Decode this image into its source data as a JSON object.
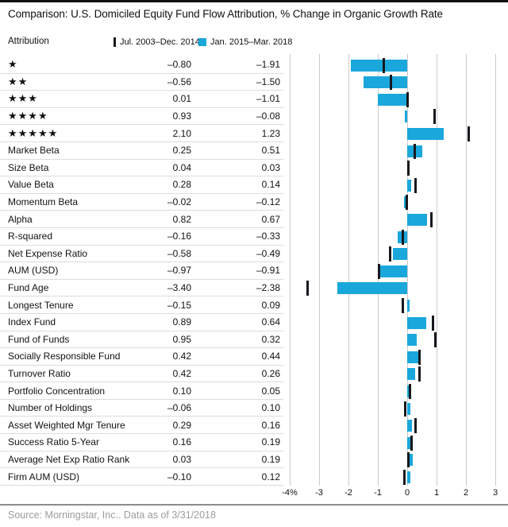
{
  "title": "Comparison: U.S. Domiciled Equity Fund Flow Attribution, % Change in Organic Growth Rate",
  "header": {
    "attribution_label": "Attribution",
    "legend": [
      {
        "label": "Jul. 2003–Dec. 2014",
        "marker": "black-tick",
        "color": "#16181d"
      },
      {
        "label": "Jan. 2015–Mar. 2018",
        "marker": "blue-square",
        "color": "#1aa7dc"
      }
    ]
  },
  "chart_data": {
    "type": "bar",
    "orientation": "horizontal",
    "title": "Comparison: U.S. Domiciled Equity Fund Flow Attribution, % Change in Organic Growth Rate",
    "xlabel": "% Change in Organic Growth Rate",
    "xlim": [
      -4,
      3
    ],
    "x_ticks": [
      "-4%",
      "-3",
      "-2",
      "-1",
      "0",
      "1",
      "2",
      "3"
    ],
    "x_tick_values": [
      -4,
      -3,
      -2,
      -1,
      0,
      1,
      2,
      3
    ],
    "grid": true,
    "legend_position": "top",
    "series": [
      {
        "name": "Jul. 2003–Dec. 2014",
        "style": "tick-marker",
        "color": "#16181d"
      },
      {
        "name": "Jan. 2015–Mar. 2018",
        "style": "bar",
        "color": "#1aa7dc"
      }
    ],
    "rows": [
      {
        "label": "★",
        "v1": -0.8,
        "v2": -1.91,
        "v1_text": "–0.80",
        "v2_text": "–1.91"
      },
      {
        "label": "★★",
        "v1": -0.56,
        "v2": -1.5,
        "v1_text": "–0.56",
        "v2_text": "–1.50"
      },
      {
        "label": "★★★",
        "v1": 0.01,
        "v2": -1.01,
        "v1_text": "0.01",
        "v2_text": "–1.01"
      },
      {
        "label": "★★★★",
        "v1": 0.93,
        "v2": -0.08,
        "v1_text": "0.93",
        "v2_text": "–0.08"
      },
      {
        "label": "★★★★★",
        "v1": 2.1,
        "v2": 1.23,
        "v1_text": "2.10",
        "v2_text": "1.23"
      },
      {
        "label": "Market Beta",
        "v1": 0.25,
        "v2": 0.51,
        "v1_text": "0.25",
        "v2_text": "0.51"
      },
      {
        "label": "Size Beta",
        "v1": 0.04,
        "v2": 0.03,
        "v1_text": "0.04",
        "v2_text": "0.03"
      },
      {
        "label": "Value Beta",
        "v1": 0.28,
        "v2": 0.14,
        "v1_text": "0.28",
        "v2_text": "0.14"
      },
      {
        "label": "Momentum Beta",
        "v1": -0.02,
        "v2": -0.12,
        "v1_text": "–0.02",
        "v2_text": "–0.12"
      },
      {
        "label": "Alpha",
        "v1": 0.82,
        "v2": 0.67,
        "v1_text": "0.82",
        "v2_text": "0.67"
      },
      {
        "label": "R-squared",
        "v1": -0.16,
        "v2": -0.33,
        "v1_text": "–0.16",
        "v2_text": "–0.33"
      },
      {
        "label": "Net Expense Ratio",
        "v1": -0.58,
        "v2": -0.49,
        "v1_text": "–0.58",
        "v2_text": "–0.49"
      },
      {
        "label": "AUM (USD)",
        "v1": -0.97,
        "v2": -0.91,
        "v1_text": "–0.97",
        "v2_text": "–0.91"
      },
      {
        "label": "Fund Age",
        "v1": -3.4,
        "v2": -2.38,
        "v1_text": "–3.40",
        "v2_text": "–2.38"
      },
      {
        "label": "Longest Tenure",
        "v1": -0.15,
        "v2": 0.09,
        "v1_text": "–0.15",
        "v2_text": "0.09"
      },
      {
        "label": "Index Fund",
        "v1": 0.89,
        "v2": 0.64,
        "v1_text": "0.89",
        "v2_text": "0.64"
      },
      {
        "label": "Fund of Funds",
        "v1": 0.95,
        "v2": 0.32,
        "v1_text": "0.95",
        "v2_text": "0.32"
      },
      {
        "label": "Socially Responsible Fund",
        "v1": 0.42,
        "v2": 0.44,
        "v1_text": "0.42",
        "v2_text": "0.44"
      },
      {
        "label": "Turnover Ratio",
        "v1": 0.42,
        "v2": 0.26,
        "v1_text": "0.42",
        "v2_text": "0.26"
      },
      {
        "label": "Portfolio Concentration",
        "v1": 0.1,
        "v2": 0.05,
        "v1_text": "0.10",
        "v2_text": "0.05"
      },
      {
        "label": "Number of Holdings",
        "v1": -0.06,
        "v2": 0.1,
        "v1_text": "–0.06",
        "v2_text": "0.10"
      },
      {
        "label": "Asset Weighted Mgr Tenure",
        "v1": 0.29,
        "v2": 0.16,
        "v1_text": "0.29",
        "v2_text": "0.16"
      },
      {
        "label": "Success Ratio 5-Year",
        "v1": 0.16,
        "v2": 0.19,
        "v1_text": "0.16",
        "v2_text": "0.19"
      },
      {
        "label": "Average Net Exp Ratio Rank",
        "v1": 0.03,
        "v2": 0.19,
        "v1_text": "0.03",
        "v2_text": "0.19"
      },
      {
        "label": "Firm AUM (USD)",
        "v1": -0.1,
        "v2": 0.12,
        "v1_text": "–0.10",
        "v2_text": "0.12"
      }
    ]
  },
  "footer": {
    "source": "Source: Morningstar, Inc.. Data as of 3/31/2018"
  }
}
